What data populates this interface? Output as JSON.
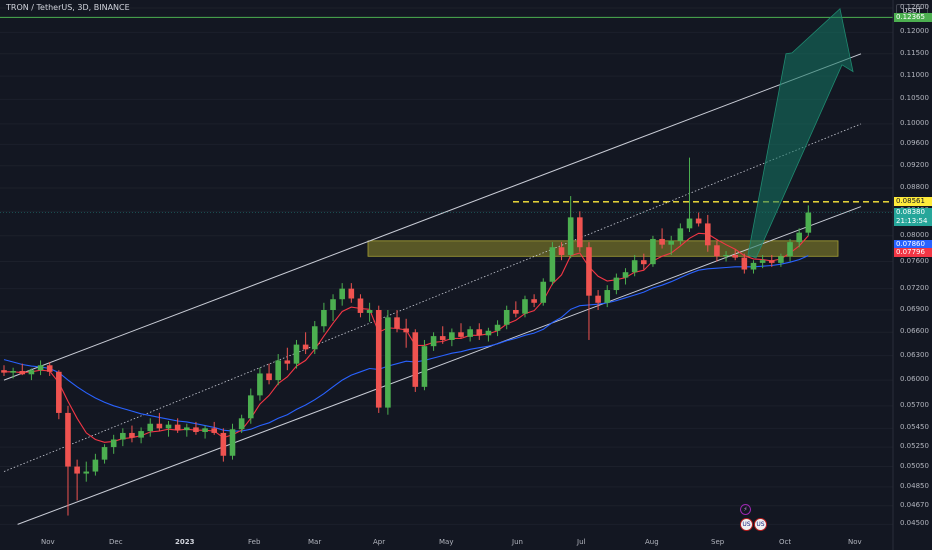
{
  "header": {
    "title": "TRON / TetherUS, 3D, BINANCE"
  },
  "price_axis": {
    "currency": "USDT",
    "labels": [
      "0.12600",
      "0.12000",
      "0.11500",
      "0.11000",
      "0.10500",
      "0.10000",
      "0.09600",
      "0.09200",
      "0.08800",
      "0.08400",
      "0.08000",
      "0.07600",
      "0.07200",
      "0.06900",
      "0.06600",
      "0.06300",
      "0.06000",
      "0.05700",
      "0.05450",
      "0.05250",
      "0.05050",
      "0.04850",
      "0.04670",
      "0.04500"
    ]
  },
  "badges": {
    "target": {
      "value": "0.12365",
      "color": "#4caf50"
    },
    "resistance": {
      "value": "0.08561",
      "color": "#ffeb3b"
    },
    "last_price": {
      "value": "0.08380",
      "countdown": "21:13:54",
      "color": "#26a69a"
    },
    "ma_blue": {
      "value": "0.07860",
      "color": "#2962ff"
    },
    "ma_red": {
      "value": "0.07796",
      "color": "#f23645"
    }
  },
  "time_axis": {
    "labels": [
      {
        "text": "Nov",
        "bold": false
      },
      {
        "text": "Dec",
        "bold": false
      },
      {
        "text": "2023",
        "bold": true
      },
      {
        "text": "Feb",
        "bold": false
      },
      {
        "text": "Mar",
        "bold": false
      },
      {
        "text": "Apr",
        "bold": false
      },
      {
        "text": "May",
        "bold": false
      },
      {
        "text": "Jun",
        "bold": false
      },
      {
        "text": "Jul",
        "bold": false
      },
      {
        "text": "Aug",
        "bold": false
      },
      {
        "text": "Sep",
        "bold": false
      },
      {
        "text": "Oct",
        "bold": false
      },
      {
        "text": "Nov",
        "bold": false
      }
    ]
  },
  "events": {
    "lightning_icon": "⚡",
    "flag_icon": "US"
  },
  "colors": {
    "up": "#26a69a",
    "up_fill": "#4caf50",
    "down": "#ef5350",
    "background": "#131722"
  },
  "chart_data": {
    "type": "candlestick",
    "title": "TRON / TetherUS, 3D, BINANCE",
    "ylabel": "USDT",
    "scale": "log",
    "ylim": [
      0.0445,
      0.127
    ],
    "x_range": [
      "2022-10-26",
      "2023-11-08"
    ],
    "candles": [
      {
        "o": 0.0612,
        "h": 0.0618,
        "l": 0.0605,
        "c": 0.0609
      },
      {
        "o": 0.0609,
        "h": 0.0615,
        "l": 0.0602,
        "c": 0.0611
      },
      {
        "o": 0.0611,
        "h": 0.062,
        "l": 0.0606,
        "c": 0.0607
      },
      {
        "o": 0.0607,
        "h": 0.0614,
        "l": 0.06,
        "c": 0.0612
      },
      {
        "o": 0.0612,
        "h": 0.0624,
        "l": 0.0606,
        "c": 0.0618
      },
      {
        "o": 0.0618,
        "h": 0.0622,
        "l": 0.0605,
        "c": 0.061
      },
      {
        "o": 0.061,
        "h": 0.0612,
        "l": 0.0555,
        "c": 0.0562
      },
      {
        "o": 0.0562,
        "h": 0.057,
        "l": 0.0458,
        "c": 0.0505
      },
      {
        "o": 0.0505,
        "h": 0.0512,
        "l": 0.0472,
        "c": 0.0498
      },
      {
        "o": 0.0498,
        "h": 0.051,
        "l": 0.049,
        "c": 0.05
      },
      {
        "o": 0.05,
        "h": 0.0518,
        "l": 0.0496,
        "c": 0.0512
      },
      {
        "o": 0.0512,
        "h": 0.0528,
        "l": 0.0508,
        "c": 0.0525
      },
      {
        "o": 0.0525,
        "h": 0.0538,
        "l": 0.0518,
        "c": 0.0533
      },
      {
        "o": 0.0533,
        "h": 0.0545,
        "l": 0.0526,
        "c": 0.054
      },
      {
        "o": 0.054,
        "h": 0.0548,
        "l": 0.053,
        "c": 0.0535
      },
      {
        "o": 0.0535,
        "h": 0.0546,
        "l": 0.0529,
        "c": 0.0542
      },
      {
        "o": 0.0542,
        "h": 0.0556,
        "l": 0.0536,
        "c": 0.055
      },
      {
        "o": 0.055,
        "h": 0.0562,
        "l": 0.0542,
        "c": 0.0545
      },
      {
        "o": 0.0545,
        "h": 0.0553,
        "l": 0.0536,
        "c": 0.0549
      },
      {
        "o": 0.0549,
        "h": 0.0556,
        "l": 0.054,
        "c": 0.0543
      },
      {
        "o": 0.0543,
        "h": 0.055,
        "l": 0.0536,
        "c": 0.0546
      },
      {
        "o": 0.0546,
        "h": 0.0552,
        "l": 0.0538,
        "c": 0.0541
      },
      {
        "o": 0.0541,
        "h": 0.0548,
        "l": 0.0534,
        "c": 0.0545
      },
      {
        "o": 0.0545,
        "h": 0.0552,
        "l": 0.0538,
        "c": 0.054
      },
      {
        "o": 0.054,
        "h": 0.0545,
        "l": 0.051,
        "c": 0.0516
      },
      {
        "o": 0.0516,
        "h": 0.055,
        "l": 0.0512,
        "c": 0.0544
      },
      {
        "o": 0.0544,
        "h": 0.056,
        "l": 0.054,
        "c": 0.0556
      },
      {
        "o": 0.0556,
        "h": 0.059,
        "l": 0.055,
        "c": 0.0582
      },
      {
        "o": 0.0582,
        "h": 0.0615,
        "l": 0.0576,
        "c": 0.0608
      },
      {
        "o": 0.0608,
        "h": 0.062,
        "l": 0.0595,
        "c": 0.06
      },
      {
        "o": 0.06,
        "h": 0.0632,
        "l": 0.0594,
        "c": 0.0624
      },
      {
        "o": 0.0624,
        "h": 0.064,
        "l": 0.0612,
        "c": 0.062
      },
      {
        "o": 0.062,
        "h": 0.065,
        "l": 0.0614,
        "c": 0.0644
      },
      {
        "o": 0.0644,
        "h": 0.066,
        "l": 0.0632,
        "c": 0.0638
      },
      {
        "o": 0.0638,
        "h": 0.0675,
        "l": 0.0632,
        "c": 0.0668
      },
      {
        "o": 0.0668,
        "h": 0.07,
        "l": 0.066,
        "c": 0.069
      },
      {
        "o": 0.069,
        "h": 0.0712,
        "l": 0.0675,
        "c": 0.0705
      },
      {
        "o": 0.0705,
        "h": 0.0728,
        "l": 0.0696,
        "c": 0.072
      },
      {
        "o": 0.072,
        "h": 0.0728,
        "l": 0.07,
        "c": 0.0706
      },
      {
        "o": 0.0706,
        "h": 0.0712,
        "l": 0.068,
        "c": 0.0686
      },
      {
        "o": 0.0686,
        "h": 0.07,
        "l": 0.0674,
        "c": 0.069
      },
      {
        "o": 0.069,
        "h": 0.0696,
        "l": 0.0562,
        "c": 0.0568
      },
      {
        "o": 0.0568,
        "h": 0.069,
        "l": 0.056,
        "c": 0.068
      },
      {
        "o": 0.068,
        "h": 0.069,
        "l": 0.066,
        "c": 0.0665
      },
      {
        "o": 0.0665,
        "h": 0.0678,
        "l": 0.064,
        "c": 0.066
      },
      {
        "o": 0.066,
        "h": 0.0664,
        "l": 0.0586,
        "c": 0.0592
      },
      {
        "o": 0.0592,
        "h": 0.065,
        "l": 0.0588,
        "c": 0.0642
      },
      {
        "o": 0.0642,
        "h": 0.066,
        "l": 0.0636,
        "c": 0.0655
      },
      {
        "o": 0.0655,
        "h": 0.0668,
        "l": 0.0645,
        "c": 0.065
      },
      {
        "o": 0.065,
        "h": 0.0665,
        "l": 0.0642,
        "c": 0.066
      },
      {
        "o": 0.066,
        "h": 0.0672,
        "l": 0.0652,
        "c": 0.0654
      },
      {
        "o": 0.0654,
        "h": 0.0668,
        "l": 0.0648,
        "c": 0.0664
      },
      {
        "o": 0.0664,
        "h": 0.0672,
        "l": 0.065,
        "c": 0.0656
      },
      {
        "o": 0.0656,
        "h": 0.0666,
        "l": 0.0648,
        "c": 0.0662
      },
      {
        "o": 0.0662,
        "h": 0.0676,
        "l": 0.0655,
        "c": 0.067
      },
      {
        "o": 0.067,
        "h": 0.0696,
        "l": 0.0664,
        "c": 0.069
      },
      {
        "o": 0.069,
        "h": 0.0702,
        "l": 0.068,
        "c": 0.0685
      },
      {
        "o": 0.0685,
        "h": 0.071,
        "l": 0.068,
        "c": 0.0705
      },
      {
        "o": 0.0705,
        "h": 0.0712,
        "l": 0.0694,
        "c": 0.07
      },
      {
        "o": 0.07,
        "h": 0.0735,
        "l": 0.0696,
        "c": 0.073
      },
      {
        "o": 0.073,
        "h": 0.079,
        "l": 0.0725,
        "c": 0.0782
      },
      {
        "o": 0.0782,
        "h": 0.079,
        "l": 0.0762,
        "c": 0.077
      },
      {
        "o": 0.077,
        "h": 0.0866,
        "l": 0.0765,
        "c": 0.083
      },
      {
        "o": 0.083,
        "h": 0.084,
        "l": 0.0775,
        "c": 0.0782
      },
      {
        "o": 0.0782,
        "h": 0.079,
        "l": 0.065,
        "c": 0.071
      },
      {
        "o": 0.071,
        "h": 0.0718,
        "l": 0.069,
        "c": 0.07
      },
      {
        "o": 0.07,
        "h": 0.0725,
        "l": 0.0694,
        "c": 0.0718
      },
      {
        "o": 0.0718,
        "h": 0.0742,
        "l": 0.0712,
        "c": 0.0736
      },
      {
        "o": 0.0736,
        "h": 0.075,
        "l": 0.0726,
        "c": 0.0744
      },
      {
        "o": 0.0744,
        "h": 0.077,
        "l": 0.0738,
        "c": 0.0762
      },
      {
        "o": 0.0762,
        "h": 0.0772,
        "l": 0.0748,
        "c": 0.0756
      },
      {
        "o": 0.0756,
        "h": 0.08,
        "l": 0.0752,
        "c": 0.0795
      },
      {
        "o": 0.0795,
        "h": 0.0812,
        "l": 0.078,
        "c": 0.0786
      },
      {
        "o": 0.0786,
        "h": 0.08,
        "l": 0.077,
        "c": 0.0792
      },
      {
        "o": 0.0792,
        "h": 0.082,
        "l": 0.0786,
        "c": 0.0812
      },
      {
        "o": 0.0812,
        "h": 0.0935,
        "l": 0.0806,
        "c": 0.0828
      },
      {
        "o": 0.0828,
        "h": 0.0838,
        "l": 0.0815,
        "c": 0.082
      },
      {
        "o": 0.082,
        "h": 0.0834,
        "l": 0.0775,
        "c": 0.0785
      },
      {
        "o": 0.0785,
        "h": 0.0792,
        "l": 0.076,
        "c": 0.0768
      },
      {
        "o": 0.0768,
        "h": 0.0776,
        "l": 0.076,
        "c": 0.077
      },
      {
        "o": 0.077,
        "h": 0.0778,
        "l": 0.0762,
        "c": 0.0766
      },
      {
        "o": 0.0766,
        "h": 0.0772,
        "l": 0.0742,
        "c": 0.0748
      },
      {
        "o": 0.0748,
        "h": 0.0762,
        "l": 0.0742,
        "c": 0.0758
      },
      {
        "o": 0.0758,
        "h": 0.077,
        "l": 0.075,
        "c": 0.0762
      },
      {
        "o": 0.0762,
        "h": 0.077,
        "l": 0.0752,
        "c": 0.0758
      },
      {
        "o": 0.0758,
        "h": 0.0772,
        "l": 0.0752,
        "c": 0.0768
      },
      {
        "o": 0.0768,
        "h": 0.0795,
        "l": 0.076,
        "c": 0.079
      },
      {
        "o": 0.079,
        "h": 0.0812,
        "l": 0.0782,
        "c": 0.0805
      },
      {
        "o": 0.0805,
        "h": 0.085,
        "l": 0.08,
        "c": 0.0838
      }
    ],
    "ma_fast": [
      0.061,
      0.061,
      0.0609,
      0.061,
      0.0612,
      0.0611,
      0.0597,
      0.0575,
      0.0556,
      0.054,
      0.0533,
      0.053,
      0.0531,
      0.0534,
      0.0535,
      0.0537,
      0.0541,
      0.0542,
      0.0544,
      0.0543,
      0.0544,
      0.0543,
      0.0543,
      0.0542,
      0.0535,
      0.0538,
      0.0543,
      0.0556,
      0.0572,
      0.0582,
      0.0596,
      0.0604,
      0.0617,
      0.0624,
      0.0638,
      0.0655,
      0.0672,
      0.0688,
      0.0694,
      0.0692,
      0.0691,
      0.066,
      0.0666,
      0.0665,
      0.0663,
      0.0643,
      0.0643,
      0.0647,
      0.0648,
      0.0652,
      0.0652,
      0.0656,
      0.0656,
      0.0658,
      0.0662,
      0.0671,
      0.0676,
      0.0685,
      0.0689,
      0.0703,
      0.0727,
      0.074,
      0.0769,
      0.0773,
      0.0752,
      0.0738,
      0.0731,
      0.0733,
      0.0736,
      0.0744,
      0.0747,
      0.0761,
      0.0768,
      0.0773,
      0.0784,
      0.0796,
      0.0804,
      0.0803,
      0.0794,
      0.0786,
      0.0779,
      0.0769,
      0.0764,
      0.0763,
      0.0761,
      0.0764,
      0.0773,
      0.0784,
      0.08
    ],
    "ma_slow": [
      0.0625,
      0.0622,
      0.0619,
      0.0617,
      0.0616,
      0.0614,
      0.0609,
      0.06,
      0.0592,
      0.0585,
      0.0579,
      0.0574,
      0.057,
      0.0567,
      0.0564,
      0.0561,
      0.0559,
      0.0557,
      0.0555,
      0.0553,
      0.0552,
      0.055,
      0.0548,
      0.0546,
      0.0543,
      0.0542,
      0.0542,
      0.0544,
      0.0548,
      0.0551,
      0.0556,
      0.056,
      0.0566,
      0.0571,
      0.0577,
      0.0584,
      0.0592,
      0.06,
      0.0606,
      0.061,
      0.0614,
      0.0613,
      0.0617,
      0.062,
      0.0623,
      0.0622,
      0.0624,
      0.0627,
      0.063,
      0.0633,
      0.0635,
      0.0638,
      0.064,
      0.0642,
      0.0645,
      0.0649,
      0.0652,
      0.0656,
      0.0659,
      0.0664,
      0.0673,
      0.068,
      0.0691,
      0.0696,
      0.0697,
      0.0698,
      0.07,
      0.0703,
      0.0707,
      0.0711,
      0.0715,
      0.0721,
      0.0725,
      0.073,
      0.0736,
      0.0742,
      0.0747,
      0.0749,
      0.075,
      0.0751,
      0.0752,
      0.0752,
      0.0752,
      0.0753,
      0.0754,
      0.0756,
      0.0759,
      0.0763,
      0.0769
    ],
    "levels": [
      {
        "name": "target",
        "value": 0.12365
      },
      {
        "name": "resistance",
        "value": 0.08561
      },
      {
        "name": "current",
        "value": 0.0838
      }
    ],
    "support_zone": [
      0.0768,
      0.0792
    ],
    "channel": {
      "upper": [
        [
          "2022-10-26",
          0.06
        ],
        [
          "2023-11-08",
          0.115
        ]
      ],
      "middle": [
        [
          "2022-10-26",
          0.05
        ],
        [
          "2023-11-08",
          0.1
        ]
      ],
      "lower": [
        [
          "2022-11-01",
          0.045
        ],
        [
          "2023-11-08",
          0.0848
        ]
      ]
    },
    "projection": {
      "from_price": 0.077,
      "to_price": 0.124
    }
  }
}
